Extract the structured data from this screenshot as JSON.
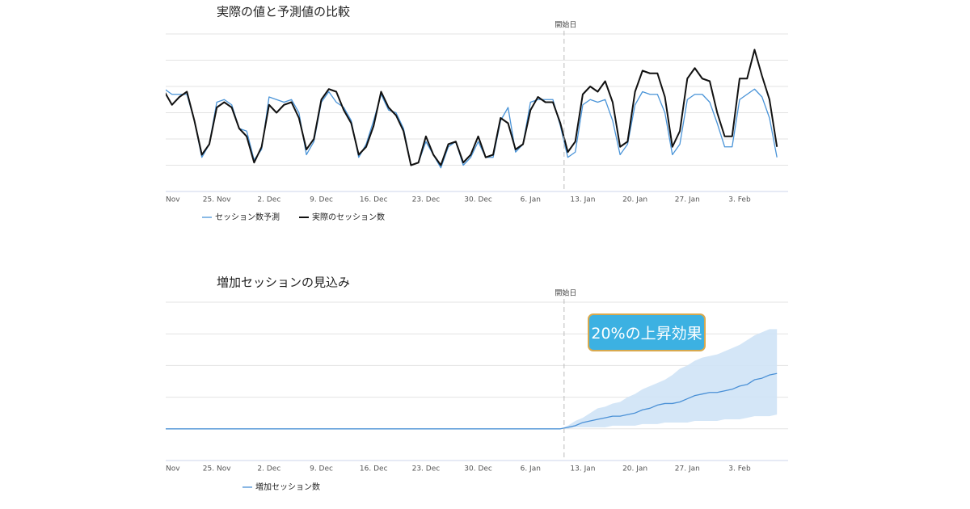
{
  "chart_data": [
    {
      "type": "line",
      "title": "実際の値と予測値の比較",
      "categories": [
        "Nov",
        null,
        null,
        null,
        null,
        null,
        null,
        "25. Nov",
        null,
        null,
        null,
        null,
        null,
        null,
        "2. Dec",
        null,
        null,
        null,
        null,
        null,
        null,
        "9. Dec",
        null,
        null,
        null,
        null,
        null,
        null,
        "16. Dec",
        null,
        null,
        null,
        null,
        null,
        null,
        "23. Dec",
        null,
        null,
        null,
        null,
        null,
        null,
        "30. Dec",
        null,
        null,
        null,
        null,
        null,
        null,
        "6. Jan",
        null,
        null,
        null,
        null,
        null,
        null,
        "13. Jan",
        null,
        null,
        null,
        null,
        null,
        null,
        "20. Jan",
        null,
        null,
        null,
        null,
        null,
        null,
        "27. Jan",
        null,
        null,
        null,
        null,
        null,
        null,
        "3. Feb",
        null,
        null,
        null,
        null,
        null
      ],
      "series": [
        {
          "name": "セッション数予測",
          "color": "#4a94d8",
          "width": 1.3,
          "values": [
            3.9,
            3.7,
            3.7,
            3.7,
            2.7,
            1.3,
            1.8,
            3.4,
            3.5,
            3.3,
            2.4,
            2.3,
            1.2,
            1.6,
            3.6,
            3.5,
            3.4,
            3.5,
            3.0,
            1.4,
            1.9,
            3.4,
            3.8,
            3.4,
            3.2,
            2.7,
            1.3,
            1.8,
            2.7,
            3.7,
            3.1,
            3.0,
            2.4,
            1.0,
            1.1,
            1.9,
            1.4,
            0.9,
            1.7,
            1.9,
            1.0,
            1.3,
            1.9,
            1.3,
            1.3,
            2.7,
            3.2,
            1.5,
            1.8,
            3.4,
            3.5,
            3.5,
            3.5,
            2.5,
            1.3,
            1.5,
            3.3,
            3.5,
            3.4,
            3.5,
            2.7,
            1.4,
            1.8,
            3.3,
            3.8,
            3.7,
            3.7,
            3.0,
            1.4,
            1.8,
            3.5,
            3.7,
            3.7,
            3.4,
            2.6,
            1.7,
            1.7,
            3.5,
            3.7,
            3.9,
            3.6,
            2.8,
            1.3
          ]
        },
        {
          "name": "実際のセッション数",
          "color": "#111111",
          "width": 2,
          "values": [
            3.8,
            3.3,
            3.6,
            3.8,
            2.7,
            1.4,
            1.8,
            3.2,
            3.4,
            3.2,
            2.4,
            2.1,
            1.1,
            1.7,
            3.3,
            3.0,
            3.3,
            3.4,
            2.8,
            1.6,
            2.0,
            3.5,
            3.9,
            3.8,
            3.1,
            2.6,
            1.4,
            1.7,
            2.5,
            3.8,
            3.2,
            2.9,
            2.3,
            1.0,
            1.1,
            2.1,
            1.4,
            1.0,
            1.8,
            1.9,
            1.1,
            1.4,
            2.1,
            1.3,
            1.4,
            2.8,
            2.6,
            1.6,
            1.8,
            3.1,
            3.6,
            3.4,
            3.4,
            2.6,
            1.5,
            1.9,
            3.7,
            4.0,
            3.8,
            4.2,
            3.4,
            1.7,
            1.9,
            3.8,
            4.6,
            4.5,
            4.5,
            3.6,
            1.7,
            2.3,
            4.3,
            4.7,
            4.3,
            4.2,
            3.0,
            2.1,
            2.1,
            4.3,
            4.3,
            5.4,
            4.4,
            3.5,
            1.7
          ]
        }
      ],
      "ylim": [
        0,
        6
      ],
      "yticks": [
        1,
        2,
        3,
        4,
        5,
        6
      ],
      "grid": true,
      "start": {
        "label": "開始日",
        "x": 53.5
      }
    },
    {
      "type": "line",
      "title": "増加セッションの見込み",
      "categories": [
        "Nov",
        null,
        null,
        null,
        null,
        null,
        null,
        "25. Nov",
        null,
        null,
        null,
        null,
        null,
        null,
        "2. Dec",
        null,
        null,
        null,
        null,
        null,
        null,
        "9. Dec",
        null,
        null,
        null,
        null,
        null,
        null,
        "16. Dec",
        null,
        null,
        null,
        null,
        null,
        null,
        "23. Dec",
        null,
        null,
        null,
        null,
        null,
        null,
        "30. Dec",
        null,
        null,
        null,
        null,
        null,
        null,
        "6. Jan",
        null,
        null,
        null,
        null,
        null,
        null,
        "13. Jan",
        null,
        null,
        null,
        null,
        null,
        null,
        "20. Jan",
        null,
        null,
        null,
        null,
        null,
        null,
        "27. Jan",
        null,
        null,
        null,
        null,
        null,
        null,
        "3. Feb",
        null,
        null,
        null,
        null,
        null
      ],
      "series": [
        {
          "name": "増加セッション数",
          "color": "#4a90d6",
          "width": 1.3,
          "values": [
            0,
            0,
            0,
            0,
            0,
            0,
            0,
            0,
            0,
            0,
            0,
            0,
            0,
            0,
            0,
            0,
            0,
            0,
            0,
            0,
            0,
            0,
            0,
            0,
            0,
            0,
            0,
            0,
            0,
            0,
            0,
            0,
            0,
            0,
            0,
            0,
            0,
            0,
            0,
            0,
            0,
            0,
            0,
            0,
            0,
            0,
            0,
            0,
            0,
            0,
            0,
            0,
            0,
            0,
            0.05,
            0.1,
            0.2,
            0.25,
            0.3,
            0.35,
            0.4,
            0.4,
            0.45,
            0.5,
            0.6,
            0.65,
            0.75,
            0.8,
            0.8,
            0.85,
            0.95,
            1.05,
            1.1,
            1.15,
            1.15,
            1.2,
            1.25,
            1.35,
            1.4,
            1.55,
            1.6,
            1.7,
            1.75
          ]
        }
      ],
      "band": {
        "color": "#cfe3f6",
        "upper": [
          null,
          null,
          null,
          null,
          null,
          null,
          null,
          null,
          null,
          null,
          null,
          null,
          null,
          null,
          null,
          null,
          null,
          null,
          null,
          null,
          null,
          null,
          null,
          null,
          null,
          null,
          null,
          null,
          null,
          null,
          null,
          null,
          null,
          null,
          null,
          null,
          null,
          null,
          null,
          null,
          null,
          null,
          null,
          null,
          null,
          null,
          null,
          null,
          null,
          null,
          null,
          null,
          null,
          0,
          0.1,
          0.25,
          0.35,
          0.5,
          0.65,
          0.7,
          0.8,
          0.85,
          1.0,
          1.1,
          1.25,
          1.35,
          1.45,
          1.55,
          1.7,
          1.9,
          2.0,
          2.15,
          2.25,
          2.3,
          2.35,
          2.45,
          2.55,
          2.65,
          2.8,
          2.95,
          3.05,
          3.15,
          3.15
        ],
        "lower": [
          null,
          null,
          null,
          null,
          null,
          null,
          null,
          null,
          null,
          null,
          null,
          null,
          null,
          null,
          null,
          null,
          null,
          null,
          null,
          null,
          null,
          null,
          null,
          null,
          null,
          null,
          null,
          null,
          null,
          null,
          null,
          null,
          null,
          null,
          null,
          null,
          null,
          null,
          null,
          null,
          null,
          null,
          null,
          null,
          null,
          null,
          null,
          null,
          null,
          null,
          null,
          null,
          null,
          0,
          0,
          0.05,
          0.05,
          0.05,
          0.05,
          0.05,
          0.1,
          0.1,
          0.1,
          0.1,
          0.15,
          0.15,
          0.15,
          0.2,
          0.2,
          0.2,
          0.2,
          0.25,
          0.25,
          0.25,
          0.25,
          0.3,
          0.3,
          0.3,
          0.35,
          0.4,
          0.4,
          0.4,
          0.45
        ]
      },
      "ylim": [
        -1,
        4
      ],
      "yticks": [
        -1,
        0,
        1,
        2,
        3,
        4
      ],
      "grid": true,
      "start": {
        "label": "開始日",
        "x": 53.5
      },
      "callout": "20%の上昇効果"
    }
  ]
}
